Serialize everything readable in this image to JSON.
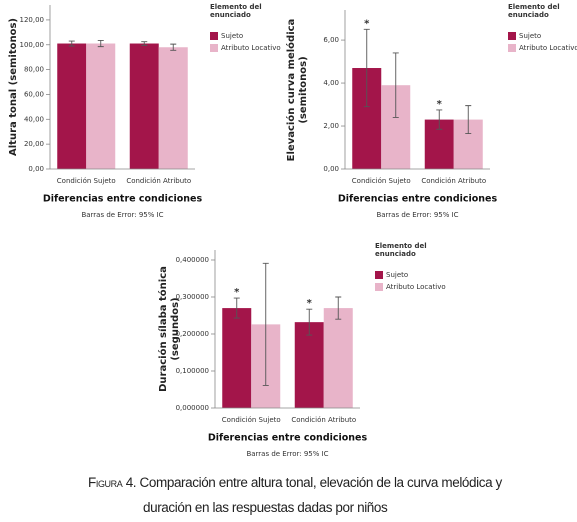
{
  "charts_figure": {
    "caption_label": "Figura 4.",
    "caption": "Comparación entre altura tonal, elevación de la curva melódica y duración en las respuestas dadas por niños"
  },
  "chart_data": [
    {
      "type": "bar",
      "y_label": "Altura tonal (semitonos)",
      "x_label": "Diferencias entre condiciones",
      "note": "Barras de Error: 95% IC",
      "legend_title": "Elemento del enunciado",
      "categories": [
        "Condición Sujeto",
        "Condición Atributo"
      ],
      "series": [
        {
          "name": "Sujeto",
          "color": "#a3154a",
          "values": [
            101,
            101
          ],
          "errors": [
            2,
            1.5
          ]
        },
        {
          "name": "Atributo Locativo",
          "color": "#e8b4c9",
          "values": [
            101,
            98
          ],
          "errors": [
            2.5,
            2.5
          ]
        }
      ],
      "ylim": [
        0,
        132
      ],
      "yticks": [
        {
          "value": 0,
          "label": "0,00"
        },
        {
          "value": 20,
          "label": "20,00"
        },
        {
          "value": 40,
          "label": "40,00"
        },
        {
          "value": 60,
          "label": "60,00"
        },
        {
          "value": 80,
          "label": "80,00"
        },
        {
          "value": 100,
          "label": "100,00"
        },
        {
          "value": 120,
          "label": "120,00"
        }
      ]
    },
    {
      "type": "bar",
      "y_label": "Elevación curva melódica (semitonos)",
      "x_label": "Diferencias entre condiciones",
      "note": "Barras de Error: 95% IC",
      "legend_title": "Elemento del enunciado",
      "categories": [
        "Condición Sujeto",
        "Condición Atributo"
      ],
      "series": [
        {
          "name": "Sujeto",
          "color": "#a3154a",
          "values": [
            4.7,
            2.3
          ],
          "errors": [
            1.8,
            0.45
          ],
          "annotations": [
            "*",
            "*"
          ]
        },
        {
          "name": "Atributo Locativo",
          "color": "#e8b4c9",
          "values": [
            3.9,
            2.3
          ],
          "errors": [
            1.5,
            0.65
          ]
        }
      ],
      "ylim": [
        0,
        7.4
      ],
      "yticks": [
        {
          "value": 0,
          "label": "0,00"
        },
        {
          "value": 2,
          "label": "2,00"
        },
        {
          "value": 4,
          "label": "4,00"
        },
        {
          "value": 6,
          "label": "6,00"
        }
      ]
    },
    {
      "type": "bar",
      "y_label": "Duración sílaba tónica (segundos)",
      "x_label": "Diferencias entre condiciones",
      "note": "Barras de Error: 95% IC",
      "legend_title": "Elemento del enunciado",
      "categories": [
        "Condición Sujeto",
        "Condición Atributo"
      ],
      "series": [
        {
          "name": "Sujeto",
          "color": "#a3154a",
          "values": [
            0.27,
            0.232
          ],
          "errors": [
            0.027,
            0.035
          ],
          "annotations": [
            "*",
            "*"
          ]
        },
        {
          "name": "Atributo Locativo",
          "color": "#e8b4c9",
          "values": [
            0.226,
            0.27
          ],
          "errors": [
            0.165,
            0.03
          ]
        }
      ],
      "ylim": [
        0,
        0.427
      ],
      "yticks": [
        {
          "value": 0,
          "label": "0,000000"
        },
        {
          "value": 0.1,
          "label": "0,100000"
        },
        {
          "value": 0.2,
          "label": "0,200000"
        },
        {
          "value": 0.3,
          "label": "0,300000"
        },
        {
          "value": 0.4,
          "label": "0,400000"
        }
      ]
    }
  ]
}
